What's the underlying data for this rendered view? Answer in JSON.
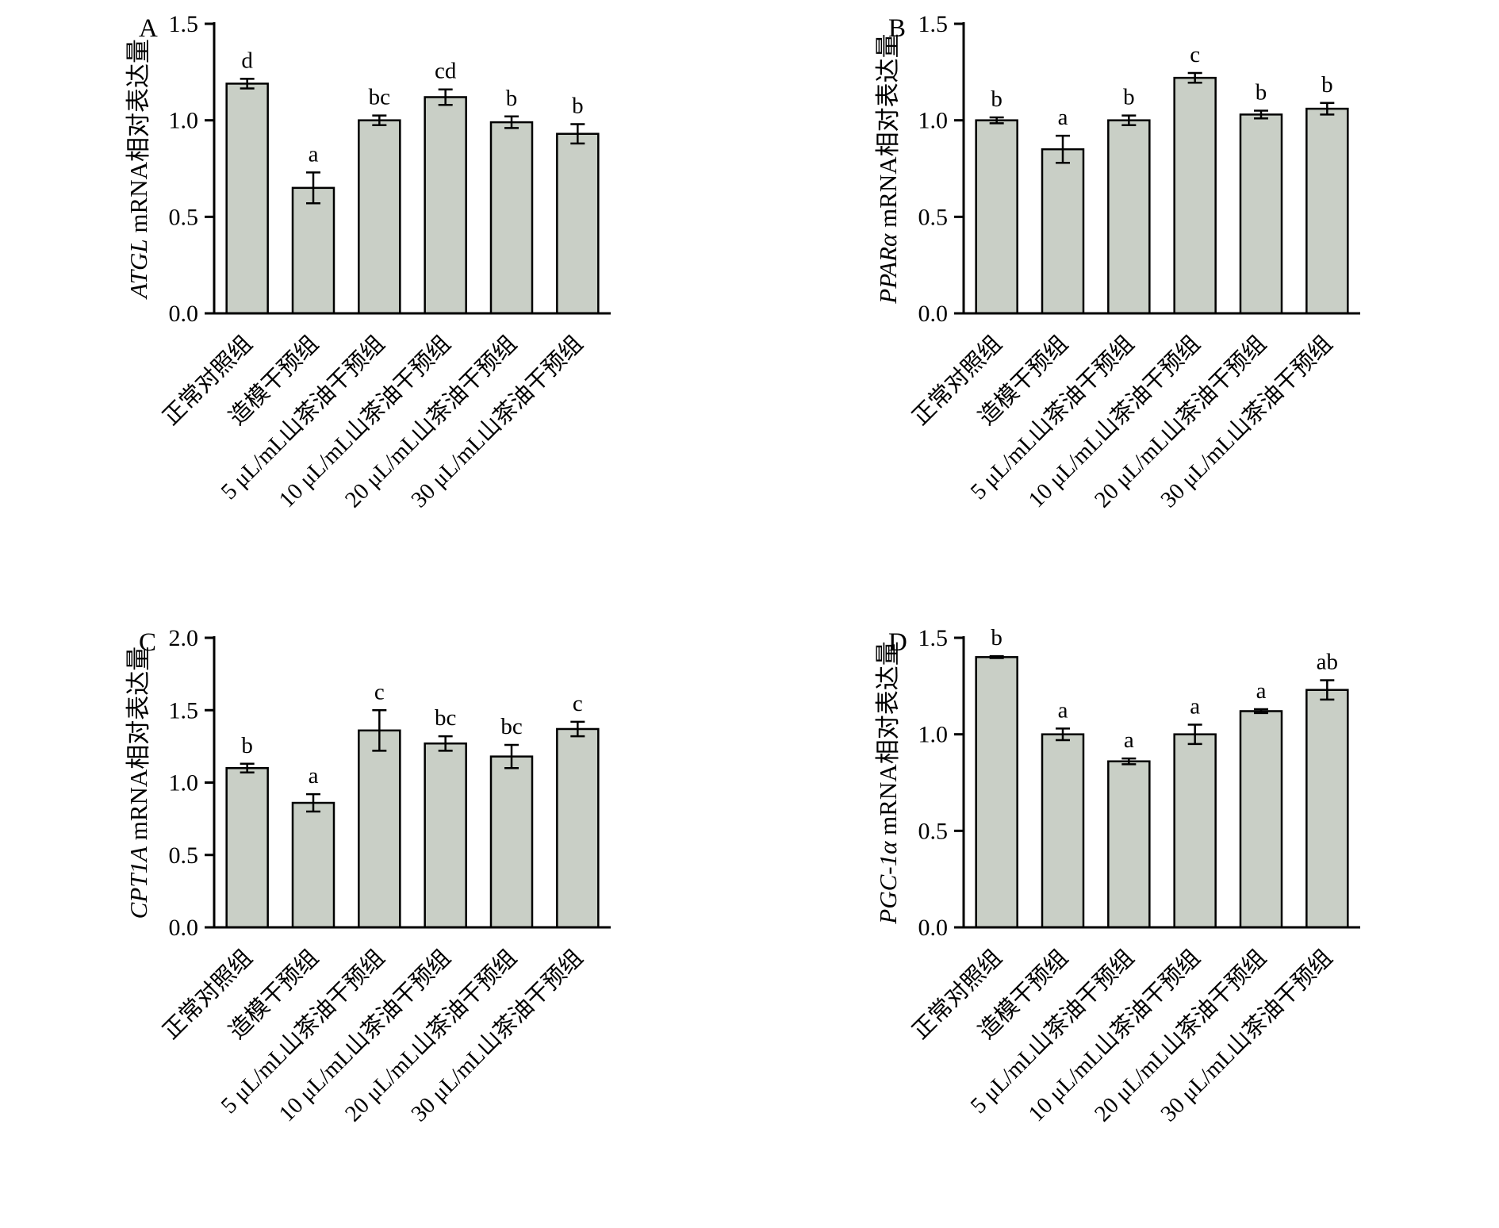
{
  "figure": {
    "background": "#ffffff"
  },
  "colors": {
    "bar_fill": "#c9cfc6",
    "bar_stroke": "#000000",
    "axis": "#000000",
    "text": "#000000"
  },
  "chart_data": [
    {
      "type": "bar",
      "panel_label": "A",
      "ylabel_gene": "ATGL",
      "ylabel_rest": " mRNA相对表达量",
      "categories": [
        "正常对照组",
        "造模干预组",
        "5 μL/mL山茶油干预组",
        "10 μL/mL山茶油干预组",
        "20 μL/mL山茶油干预组",
        "30 μL/mL山茶油干预组"
      ],
      "values": [
        1.19,
        0.65,
        1.0,
        1.12,
        0.99,
        0.93
      ],
      "errors": [
        0.025,
        0.08,
        0.025,
        0.04,
        0.03,
        0.05
      ],
      "sig_letters": [
        "d",
        "a",
        "bc",
        "cd",
        "b",
        "b"
      ],
      "ylim": [
        0.0,
        1.5
      ],
      "yticks": [
        "0.0",
        "0.5",
        "1.0",
        "1.5"
      ],
      "grid": "off",
      "legend": "none"
    },
    {
      "type": "bar",
      "panel_label": "B",
      "ylabel_gene": "PPARα",
      "ylabel_rest": " mRNA相对表达量",
      "categories": [
        "正常对照组",
        "造模干预组",
        "5 μL/mL山茶油干预组",
        "10 μL/mL山茶油干预组",
        "20 μL/mL山茶油干预组",
        "30 μL/mL山茶油干预组"
      ],
      "values": [
        1.0,
        0.85,
        1.0,
        1.22,
        1.03,
        1.06
      ],
      "errors": [
        0.015,
        0.07,
        0.025,
        0.025,
        0.02,
        0.03
      ],
      "sig_letters": [
        "b",
        "a",
        "b",
        "c",
        "b",
        "b"
      ],
      "ylim": [
        0.0,
        1.5
      ],
      "yticks": [
        "0.0",
        "0.5",
        "1.0",
        "1.5"
      ],
      "grid": "off",
      "legend": "none"
    },
    {
      "type": "bar",
      "panel_label": "C",
      "ylabel_gene": "CPT1A",
      "ylabel_rest": " mRNA相对表达量",
      "categories": [
        "正常对照组",
        "造模干预组",
        "5 μL/mL山茶油干预组",
        "10 μL/mL山茶油干预组",
        "20 μL/mL山茶油干预组",
        "30 μL/mL山茶油干预组"
      ],
      "values": [
        1.1,
        0.86,
        1.36,
        1.27,
        1.18,
        1.37
      ],
      "errors": [
        0.03,
        0.06,
        0.14,
        0.05,
        0.08,
        0.05
      ],
      "sig_letters": [
        "b",
        "a",
        "c",
        "bc",
        "bc",
        "c"
      ],
      "ylim": [
        0.0,
        2.0
      ],
      "yticks": [
        "0.0",
        "0.5",
        "1.0",
        "1.5",
        "2.0"
      ],
      "grid": "off",
      "legend": "none"
    },
    {
      "type": "bar",
      "panel_label": "D",
      "ylabel_gene": "PGC-1α",
      "ylabel_rest": " mRNA相对表达量",
      "categories": [
        "正常对照组",
        "造模干预组",
        "5 μL/mL山茶油干预组",
        "10 μL/mL山茶油干预组",
        "20 μL/mL山茶油干预组",
        "30 μL/mL山茶油干预组"
      ],
      "values": [
        1.4,
        1.0,
        0.86,
        1.0,
        1.12,
        1.23
      ],
      "errors": [
        0.005,
        0.03,
        0.015,
        0.05,
        0.01,
        0.05
      ],
      "sig_letters": [
        "b",
        "a",
        "a",
        "a",
        "a",
        "ab"
      ],
      "ylim": [
        0.0,
        1.5
      ],
      "yticks": [
        "0.0",
        "0.5",
        "1.0",
        "1.5"
      ],
      "grid": "off",
      "legend": "none"
    }
  ]
}
